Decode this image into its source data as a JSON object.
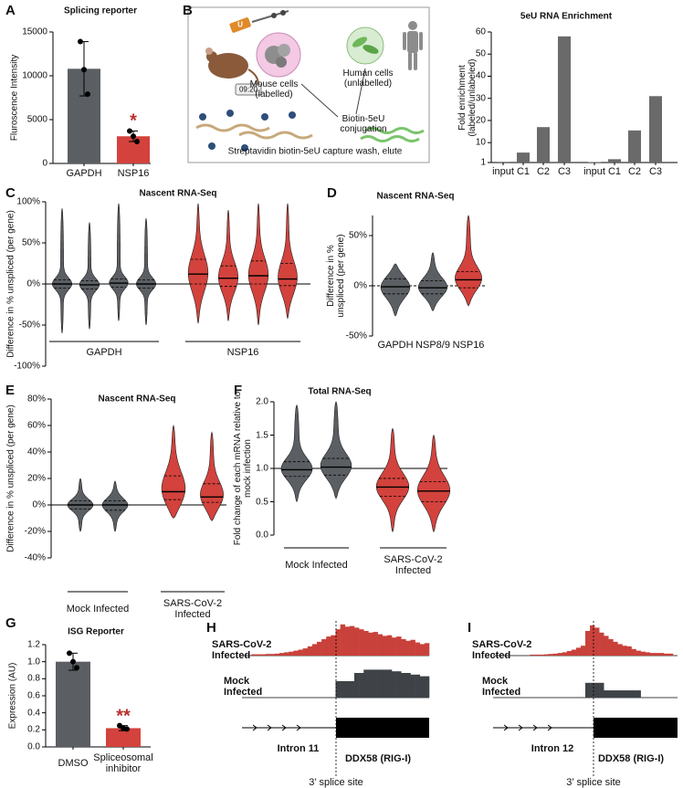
{
  "panel_labels": [
    "A",
    "B",
    "C",
    "D",
    "E",
    "F",
    "G",
    "H",
    "I"
  ],
  "diagram": {
    "tube": "U",
    "timer": "09:20",
    "mouse_cells": "Mouse cells (labelled)",
    "human_cells": "Human cells (unlabelled)",
    "conjugation": "Biotin-5eU conjugation",
    "capture": "Streptavidin biotin-5eU capture wash, elute"
  },
  "chart_data": [
    {
      "type": "bar",
      "title": "Splicing reporter",
      "y_label": "Fluroscence Intensity",
      "categories": [
        "GAPDH",
        "NSP16"
      ],
      "values": [
        10800,
        3100
      ],
      "errors": [
        3100,
        600
      ],
      "points": [
        [
          13900,
          10700,
          7900
        ],
        [
          3700,
          3100,
          2500
        ]
      ],
      "colors": [
        "#5b5f63",
        "#d3423d"
      ],
      "ylim": [
        0,
        15000
      ],
      "yticks": [
        0,
        5000,
        10000,
        15000
      ],
      "annotations": [
        {
          "text": "*",
          "at": "NSP16",
          "color": "#b8322f"
        }
      ]
    },
    {
      "type": "bar",
      "title": "5eU RNA Enrichment",
      "y_label": "Fold enrichment (labeled/unlabeled)",
      "categories": [
        "input",
        "C1",
        "C2",
        "C3",
        "input",
        "C1",
        "C2",
        "C3"
      ],
      "values": [
        1.3,
        5.5,
        17,
        58,
        1.2,
        2.5,
        15.5,
        31
      ],
      "color": "#6a6a6a",
      "ylim": [
        1,
        60
      ],
      "yticks": [
        1,
        10,
        20,
        30,
        40,
        50,
        60
      ]
    },
    {
      "type": "violin",
      "title": "Nascent RNA-Seq",
      "y_label": "Difference in % unspliced (per gene)",
      "ylim": [
        -100,
        100
      ],
      "yticks": [
        {
          "value": -100,
          "label": "-100%"
        },
        {
          "value": -50,
          "label": "-50%"
        },
        {
          "value": 0,
          "label": "0%"
        },
        {
          "value": 50,
          "label": "50%"
        },
        {
          "value": 100,
          "label": "100%"
        }
      ],
      "ref_line": 0,
      "group_lines": true,
      "groups": [
        {
          "name": "GAPDH",
          "color": "#5b5f63",
          "violins": [
            {
              "min": -60,
              "q1": -5,
              "median": 0,
              "q3": 5,
              "max": 92
            },
            {
              "min": -55,
              "q1": -6,
              "median": -1,
              "q3": 4,
              "max": 75
            },
            {
              "min": -45,
              "q1": -4,
              "median": 1,
              "q3": 6,
              "max": 98
            },
            {
              "min": -50,
              "q1": -5,
              "median": 0,
              "q3": 5,
              "max": 80
            }
          ]
        },
        {
          "name": "NSP16",
          "color": "#d3423d",
          "violins": [
            {
              "min": -48,
              "q1": 0,
              "median": 12,
              "q3": 30,
              "max": 98
            },
            {
              "min": -45,
              "q1": -3,
              "median": 7,
              "q3": 22,
              "max": 90
            },
            {
              "min": -50,
              "q1": 0,
              "median": 10,
              "q3": 28,
              "max": 98
            },
            {
              "min": -42,
              "q1": -2,
              "median": 6,
              "q3": 25,
              "max": 98
            }
          ]
        }
      ]
    },
    {
      "type": "violin",
      "title": "Nascent RNA-Seq",
      "y_label": "Difference in % unspliced (per gene)",
      "ylim": [
        -50,
        70
      ],
      "yticks": [
        {
          "value": -50,
          "label": "-50%"
        },
        {
          "value": 0,
          "label": "0%"
        },
        {
          "value": 50,
          "label": "50%"
        }
      ],
      "ref_line": 0,
      "ref_dashed": true,
      "group_lines": false,
      "groups": [
        {
          "name": "GAPDH",
          "color": "#5b5f63",
          "violins": [
            {
              "min": -30,
              "q1": -8,
              "median": -1,
              "q3": 7,
              "max": 22
            }
          ]
        },
        {
          "name": "NSP8/9",
          "color": "#5b5f63",
          "violins": [
            {
              "min": -25,
              "q1": -8,
              "median": -2,
              "q3": 5,
              "max": 33
            }
          ]
        },
        {
          "name": "NSP16",
          "color": "#d3423d",
          "violins": [
            {
              "min": -20,
              "q1": -2,
              "median": 6,
              "q3": 14,
              "max": 70
            }
          ]
        }
      ]
    },
    {
      "type": "violin",
      "title": "Nascent RNA-Seq",
      "y_label": "Difference in % unspliced (per gene)",
      "ylim": [
        -40,
        80
      ],
      "yticks": [
        {
          "value": -40,
          "label": "-40%"
        },
        {
          "value": -20,
          "label": "-20%"
        },
        {
          "value": 0,
          "label": "0%"
        },
        {
          "value": 20,
          "label": "20%"
        },
        {
          "value": 40,
          "label": "40%"
        },
        {
          "value": 60,
          "label": "60%"
        },
        {
          "value": 80,
          "label": "80%"
        }
      ],
      "ref_line": 0,
      "group_lines": true,
      "groups": [
        {
          "name": "Mock Infected",
          "color": "#5b5f63",
          "violins": [
            {
              "min": -20,
              "q1": -3,
              "median": 0,
              "q3": 3,
              "max": 20
            },
            {
              "min": -20,
              "q1": -4,
              "median": 0,
              "q3": 3,
              "max": 18
            }
          ]
        },
        {
          "name": "SARS-CoV-2 Infected",
          "color": "#d3423d",
          "violins": [
            {
              "min": -10,
              "q1": 4,
              "median": 10,
              "q3": 22,
              "max": 60
            },
            {
              "min": -12,
              "q1": 2,
              "median": 6,
              "q3": 16,
              "max": 55
            }
          ]
        }
      ]
    },
    {
      "type": "violin",
      "title": "Total RNA-Seq",
      "y_label": "Fold change of each mRNA relative to mock infection",
      "ylim": [
        0,
        2
      ],
      "yticks": [
        {
          "value": 0,
          "label": "0.0"
        },
        {
          "value": 0.5,
          "label": "0.5"
        },
        {
          "value": 1,
          "label": "1.0"
        },
        {
          "value": 1.5,
          "label": "1.5"
        },
        {
          "value": 2,
          "label": "2.0"
        }
      ],
      "ref_line": 1,
      "group_lines": true,
      "groups": [
        {
          "name": "Mock Infected",
          "color": "#5b5f63",
          "violins": [
            {
              "min": 0.5,
              "q1": 0.88,
              "median": 0.98,
              "q3": 1.1,
              "max": 1.95
            },
            {
              "min": 0.55,
              "q1": 0.9,
              "median": 1.02,
              "q3": 1.15,
              "max": 2.0
            }
          ]
        },
        {
          "name": "SARS-CoV-2 Infected",
          "color": "#d3423d",
          "violins": [
            {
              "min": 0.05,
              "q1": 0.58,
              "median": 0.72,
              "q3": 0.85,
              "max": 1.6
            },
            {
              "min": 0.05,
              "q1": 0.5,
              "median": 0.66,
              "q3": 0.8,
              "max": 1.5
            }
          ]
        }
      ]
    },
    {
      "type": "bar",
      "title": "ISG Reporter",
      "y_label": "Expression (AU)",
      "categories": [
        "DMSO",
        "Spliceosomal inhibitor"
      ],
      "values": [
        1.0,
        0.22
      ],
      "errors": [
        0.1,
        0.03
      ],
      "points": [
        [
          1.1,
          1.0,
          0.93
        ],
        [
          0.25,
          0.22,
          0.21
        ]
      ],
      "colors": [
        "#5b5f63",
        "#d3423d"
      ],
      "ylim": [
        0,
        1.2
      ],
      "yticks": [
        {
          "value": 0,
          "label": "0.0"
        },
        {
          "value": 0.2,
          "label": "0.2"
        },
        {
          "value": 0.4,
          "label": "0.4"
        },
        {
          "value": 0.6,
          "label": "0.6"
        },
        {
          "value": 0.8,
          "label": "0.8"
        },
        {
          "value": 1,
          "label": "1.0"
        },
        {
          "value": 1.2,
          "label": "1.2"
        }
      ],
      "annotations": [
        {
          "text": "**",
          "at": "Spliceosomal inhibitor",
          "color": "#b8322f"
        }
      ]
    },
    {
      "type": "coverage",
      "ylim": [
        0,
        100
      ],
      "series": [
        {
          "name": "SARS-CoV-2 Infected",
          "color": "#c9413b",
          "values": [
            0,
            0,
            4,
            4,
            4,
            5,
            5,
            6,
            8,
            10,
            12,
            15,
            18,
            22,
            28,
            35,
            42,
            50,
            58,
            62,
            80,
            95,
            88,
            90,
            85,
            80,
            75,
            70,
            72,
            65,
            60,
            62,
            55,
            58,
            50,
            45,
            48,
            40,
            35,
            38
          ]
        },
        {
          "name": "Mock Infected",
          "color": "#3f4347",
          "values": [
            0,
            0,
            0,
            0,
            0,
            0,
            0,
            0,
            0,
            0,
            0,
            0,
            0,
            0,
            0,
            0,
            0,
            0,
            0,
            0,
            50,
            50,
            50,
            50,
            75,
            75,
            85,
            85,
            85,
            85,
            85,
            85,
            80,
            80,
            75,
            75,
            70,
            70,
            65,
            65
          ]
        }
      ],
      "intron": "Intron 11",
      "exon": "DDX58 (RIG-I)",
      "splice_site": "3’ splice site"
    },
    {
      "type": "coverage",
      "ylim": [
        0,
        100
      ],
      "series": [
        {
          "name": "SARS-CoV-2 Infected",
          "color": "#c9413b",
          "values": [
            0,
            0,
            0,
            0,
            0,
            0,
            0,
            0,
            3,
            3,
            3,
            4,
            5,
            6,
            8,
            10,
            14,
            18,
            24,
            30,
            75,
            92,
            85,
            70,
            60,
            50,
            42,
            35,
            30,
            28,
            20,
            15,
            12,
            10,
            8,
            8,
            8,
            6,
            6,
            0
          ]
        },
        {
          "name": "Mock Infected",
          "color": "#3f4347",
          "values": [
            0,
            0,
            0,
            0,
            0,
            0,
            0,
            0,
            0,
            0,
            0,
            0,
            0,
            0,
            0,
            0,
            0,
            0,
            0,
            0,
            45,
            45,
            45,
            45,
            22,
            22,
            22,
            22,
            22,
            22,
            22,
            22,
            0,
            0,
            0,
            0,
            0,
            0,
            0,
            0
          ]
        }
      ],
      "intron": "Intron 12",
      "exon": "DDX58 (RIG-I)",
      "splice_site": "3’ splice site"
    }
  ]
}
